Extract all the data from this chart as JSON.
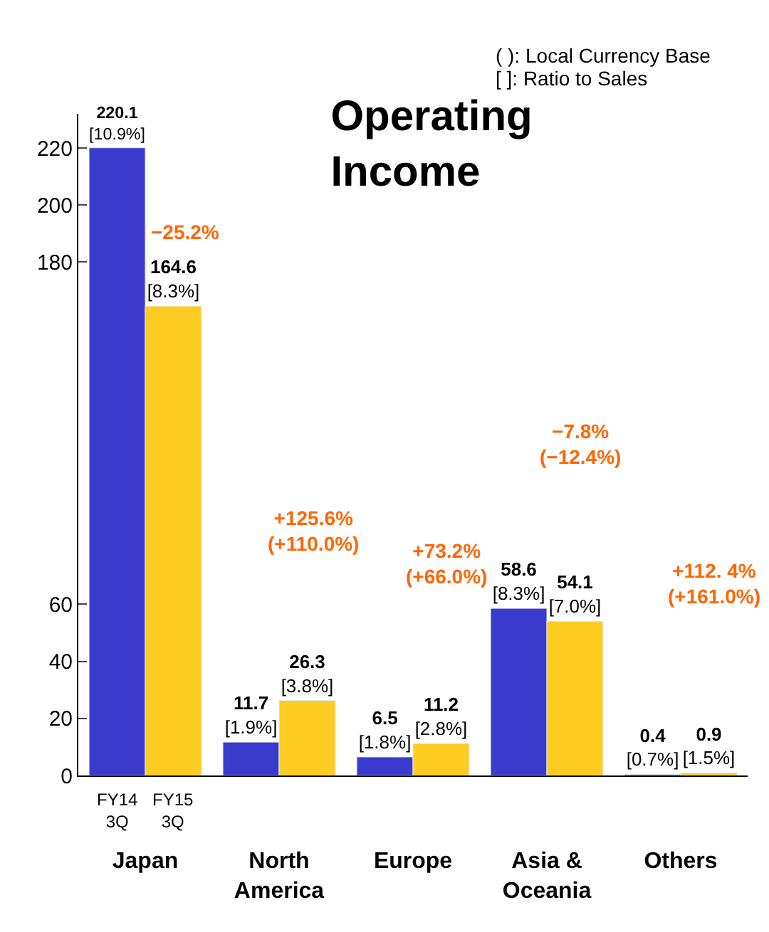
{
  "chart_data": {
    "type": "bar",
    "title": "Operating\nIncome",
    "categories": [
      "Japan",
      "North\nAmerica",
      "Europe",
      "Asia &\nOceania",
      "Others"
    ],
    "series": [
      {
        "name": "FY14\n3Q",
        "color": "#3a3acc",
        "values": [
          220.1,
          11.7,
          6.5,
          58.6,
          0.4
        ],
        "value_labels": [
          "220.1\n[10.9%]",
          "11.7\n[1.9%]",
          "6.5\n[1.8%]",
          "58.6\n[8.3%]",
          "0.4\n[0.7%]"
        ]
      },
      {
        "name": "FY15\n3Q",
        "color": "#ffcc22",
        "values": [
          164.6,
          26.3,
          11.2,
          54.1,
          0.9
        ],
        "value_labels": [
          "164.6\n[8.3%]",
          "26.3\n[3.8%]",
          "11.2\n[2.8%]",
          "54.1\n[7.0%]",
          "0.9\n[1.5%]"
        ]
      }
    ],
    "ylim": [
      0,
      232
    ],
    "yticks": [
      0,
      20,
      40,
      60,
      180,
      200,
      220
    ],
    "annotations": [
      "−25.2%",
      "+125.6%\n(+110.0%)",
      "+73.2%\n(+66.0%)",
      "−7.8%\n(−12.4%)",
      "+112. 4%\n(+161.0%)",
      "( ): Local Currency Base",
      "[ ]: Ratio to Sales"
    ],
    "legend": false
  }
}
